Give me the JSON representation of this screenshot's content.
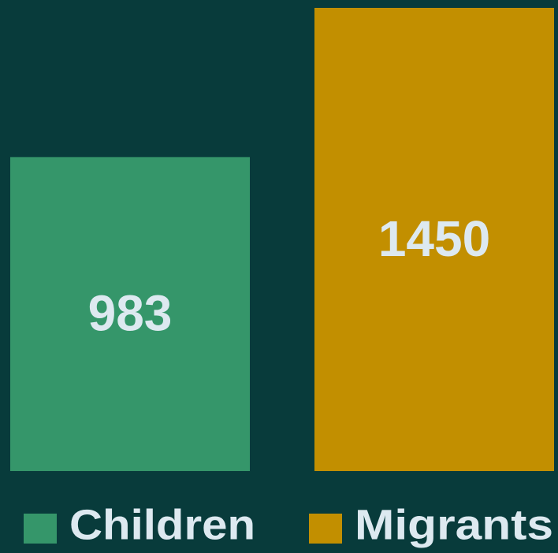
{
  "chart_data": {
    "type": "bar",
    "series": [
      {
        "name": "Children",
        "color": "#35966a",
        "values": [
          983
        ]
      },
      {
        "name": "Migrants",
        "color": "#c28f00",
        "values": [
          1450
        ]
      }
    ],
    "legend": "bottom"
  }
}
